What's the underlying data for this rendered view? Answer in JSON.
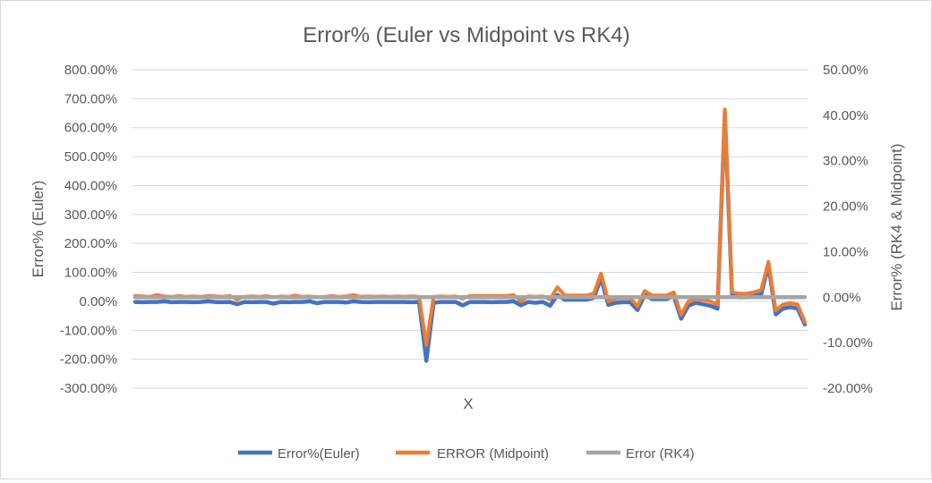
{
  "chart_data": {
    "type": "line",
    "title": "Error% (Euler vs Midpoint vs RK4)",
    "xlabel": "X",
    "ylabel_left": "Error% (Euler)",
    "ylabel_right": "Error% (RK4  & Midpoint)",
    "y_left": {
      "min": -300,
      "max": 800,
      "step": 100,
      "tick_labels": [
        "800.00%",
        "700.00%",
        "600.00%",
        "500.00%",
        "400.00%",
        "300.00%",
        "200.00%",
        "100.00%",
        "0.00%",
        "-100.00%",
        "-200.00%",
        "-300.00%"
      ]
    },
    "y_right": {
      "min": -20,
      "max": 50,
      "step": 10,
      "tick_labels": [
        "50.00%",
        "40.00%",
        "30.00%",
        "20.00%",
        "10.00%",
        "0.00%",
        "-10.00%",
        "-20.00%"
      ]
    },
    "grid": true,
    "legend_position": "bottom",
    "colors": {
      "euler": "#4472C4",
      "midpoint": "#ED7D31",
      "rk4": "#A5A5A5"
    },
    "series": [
      {
        "name": "Error%(Euler)",
        "axis": "left",
        "color": "#4472C4",
        "values": [
          -2,
          -3,
          -2,
          -2,
          0,
          -3,
          -2,
          -2,
          -3,
          -2,
          0,
          -2,
          -3,
          -2,
          -10,
          -2,
          -3,
          -2,
          -2,
          -8,
          -2,
          -3,
          -2,
          -2,
          0,
          -6,
          -2,
          -2,
          -2,
          -4,
          0,
          -2,
          -3,
          -2,
          -2,
          -2,
          -2,
          -2,
          -3,
          -2,
          -205,
          -5,
          -2,
          -2,
          -2,
          -14,
          -2,
          -2,
          -2,
          -3,
          -2,
          -2,
          0,
          -14,
          -2,
          -5,
          -2,
          -15,
          22,
          6,
          6,
          6,
          6,
          12,
          80,
          -12,
          -5,
          -3,
          -3,
          -30,
          22,
          8,
          8,
          8,
          18,
          -60,
          -15,
          -5,
          -10,
          -15,
          -25,
          650,
          20,
          14,
          14,
          18,
          25,
          125,
          -45,
          -25,
          -20,
          -25,
          -80
        ]
      },
      {
        "name": "ERROR (Midpoint)",
        "axis": "right",
        "color": "#ED7D31",
        "values": [
          0.3,
          0.2,
          0.1,
          0.5,
          0.2,
          0.1,
          0.3,
          0.1,
          0.2,
          0.1,
          0.3,
          0.2,
          0.1,
          0.3,
          -0.5,
          0.1,
          0.2,
          0.1,
          0.3,
          0,
          0.2,
          0.1,
          0.4,
          0.1,
          0.2,
          0,
          0.1,
          0.3,
          0.1,
          0.2,
          0.5,
          0.1,
          0.2,
          0.1,
          0.2,
          0.1,
          0.2,
          0.1,
          0.2,
          0.1,
          -10.5,
          0.1,
          0.2,
          0.1,
          0.2,
          -0.3,
          0.3,
          0.3,
          0.3,
          0.3,
          0.3,
          0.3,
          0.5,
          -0.9,
          0.2,
          0.1,
          0.2,
          -0.5,
          2.2,
          0.4,
          0.4,
          0.4,
          0.4,
          0.8,
          5.2,
          -0.9,
          -0.3,
          -0.2,
          -0.2,
          -2.0,
          1.4,
          0.4,
          0.4,
          0.4,
          1.1,
          -3.9,
          -0.9,
          -0.3,
          -0.6,
          -0.9,
          -1.6,
          41.3,
          1.1,
          0.8,
          0.8,
          1.1,
          1.6,
          7.8,
          -2.9,
          -1.6,
          -1.3,
          -1.6,
          -5.5
        ]
      },
      {
        "name": "Error (RK4)",
        "axis": "right",
        "color": "#A5A5A5",
        "values": [
          0,
          0,
          0,
          0,
          0,
          0,
          0,
          0,
          0,
          0,
          0,
          0,
          0,
          0,
          0,
          0,
          0,
          0,
          0,
          0,
          0,
          0,
          0,
          0,
          0,
          0,
          0,
          0,
          0,
          0,
          0,
          0,
          0,
          0,
          0,
          0,
          0,
          0,
          0,
          0,
          0,
          0,
          0,
          0,
          0,
          0,
          0,
          0,
          0,
          0,
          0,
          0,
          0,
          0,
          0,
          0,
          0,
          0,
          0,
          0,
          0,
          0,
          0,
          0,
          0,
          0,
          0,
          0,
          0,
          0,
          0,
          0,
          0,
          0,
          0,
          0,
          0,
          0,
          0,
          0,
          0,
          0,
          0,
          0,
          0,
          0,
          0,
          0,
          0,
          0,
          0,
          0,
          0
        ]
      }
    ]
  }
}
